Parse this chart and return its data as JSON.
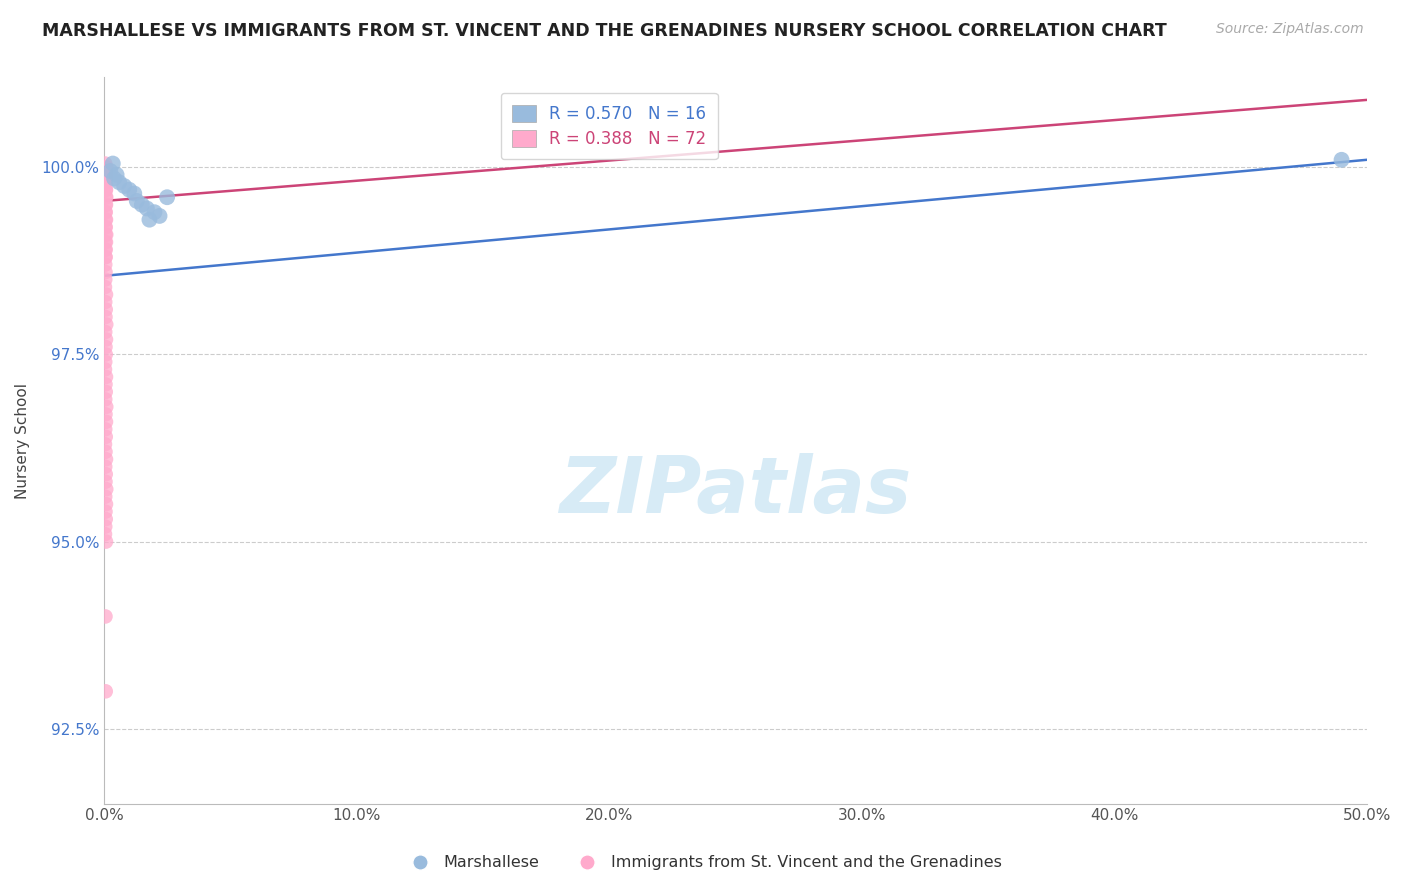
{
  "title": "MARSHALLESE VS IMMIGRANTS FROM ST. VINCENT AND THE GRENADINES NURSERY SCHOOL CORRELATION CHART",
  "source": "Source: ZipAtlas.com",
  "xlabel": "",
  "ylabel": "Nursery School",
  "xlim": [
    0.0,
    50.0
  ],
  "ylim": [
    91.5,
    101.2
  ],
  "yticks": [
    92.5,
    95.0,
    97.5,
    100.0
  ],
  "xticks": [
    0.0,
    10.0,
    20.0,
    30.0,
    40.0,
    50.0
  ],
  "blue_label": "Marshallese",
  "pink_label": "Immigrants from St. Vincent and the Grenadines",
  "blue_R": 0.57,
  "blue_N": 16,
  "pink_R": 0.388,
  "pink_N": 72,
  "blue_color": "#99bbdd",
  "pink_color": "#ffaacc",
  "blue_trend_color": "#4477cc",
  "pink_trend_color": "#cc4477",
  "watermark_color": "#d0e8f5",
  "blue_trend_x": [
    0.0,
    50.0
  ],
  "blue_trend_y": [
    98.55,
    100.1
  ],
  "pink_trend_x": [
    0.0,
    50.0
  ],
  "pink_trend_y": [
    99.55,
    100.9
  ],
  "blue_scatter_x": [
    0.35,
    0.5,
    1.5,
    2.0,
    1.2,
    1.8,
    0.8,
    2.5,
    1.3,
    1.7,
    0.4,
    2.2,
    1.0,
    0.6,
    49.0,
    0.25
  ],
  "blue_scatter_y": [
    100.05,
    99.9,
    99.5,
    99.4,
    99.65,
    99.3,
    99.75,
    99.6,
    99.55,
    99.45,
    99.85,
    99.35,
    99.7,
    99.8,
    100.1,
    99.95
  ],
  "pink_scatter_x": [
    0.05,
    0.08,
    0.04,
    0.1,
    0.06,
    0.07,
    0.05,
    0.09,
    0.06,
    0.08,
    0.05,
    0.07,
    0.04,
    0.06,
    0.08,
    0.05,
    0.07,
    0.06,
    0.09,
    0.05,
    0.08,
    0.06,
    0.07,
    0.05,
    0.04,
    0.08,
    0.06,
    0.07,
    0.05,
    0.09,
    0.06,
    0.08,
    0.05,
    0.07,
    0.04,
    0.06,
    0.08,
    0.05,
    0.07,
    0.06,
    0.09,
    0.05,
    0.08,
    0.06,
    0.07,
    0.05,
    0.04,
    0.08,
    0.06,
    0.07,
    0.05,
    0.09,
    0.06,
    0.08,
    0.05,
    0.07,
    0.04,
    0.06,
    0.08,
    0.05,
    0.07,
    0.06,
    0.09,
    0.05,
    0.08,
    0.06,
    0.07,
    0.05,
    0.04,
    0.08,
    0.06,
    0.07
  ],
  "pink_scatter_y": [
    100.05,
    99.95,
    100.0,
    99.85,
    100.0,
    99.9,
    99.75,
    100.0,
    99.8,
    99.7,
    100.0,
    99.6,
    99.9,
    99.5,
    99.8,
    99.4,
    99.7,
    99.3,
    99.6,
    99.2,
    99.5,
    99.1,
    99.4,
    99.0,
    98.9,
    99.3,
    98.8,
    99.2,
    98.7,
    99.1,
    98.6,
    99.0,
    98.5,
    98.9,
    98.4,
    98.8,
    98.3,
    98.2,
    98.1,
    98.0,
    97.9,
    97.8,
    97.7,
    97.6,
    97.5,
    97.4,
    97.3,
    97.2,
    97.1,
    97.0,
    96.9,
    96.8,
    96.7,
    96.6,
    96.5,
    96.4,
    96.3,
    96.2,
    96.1,
    96.0,
    95.9,
    95.8,
    95.7,
    95.6,
    95.5,
    95.4,
    95.3,
    95.2,
    95.1,
    95.0,
    94.0,
    93.0
  ]
}
